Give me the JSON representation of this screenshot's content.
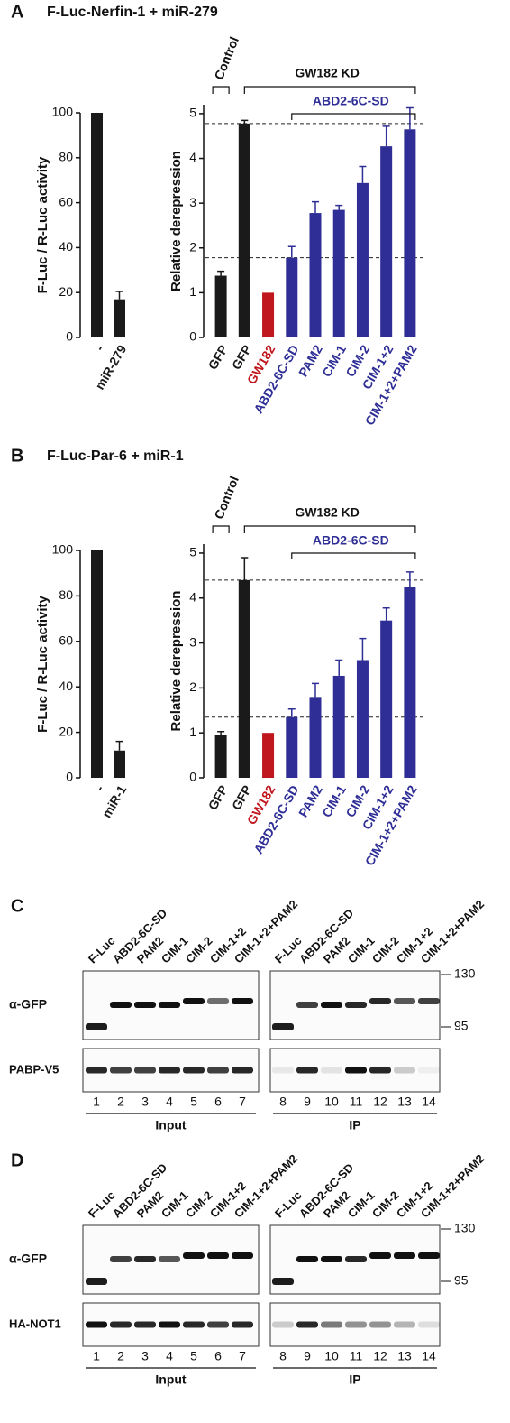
{
  "panels": [
    {
      "label": "A",
      "title": "F-Luc-Nerfin-1 + miR-279"
    },
    {
      "label": "B",
      "title": "F-Luc-Par-6 + miR-1"
    }
  ],
  "chart_data": [
    {
      "type": "bar",
      "ylabel": "F-Luc / R-Luc activity",
      "categories": [
        "-",
        "miR-279"
      ],
      "values": [
        100,
        17
      ],
      "errors": [
        null,
        3.5
      ],
      "colors": [
        "#1a1a1a",
        "#1a1a1a"
      ],
      "ylim": [
        0,
        100
      ],
      "yticks": [
        0,
        20,
        40,
        60,
        80,
        100
      ]
    },
    {
      "type": "bar",
      "ylabel": "Relative derepression",
      "categories": [
        "GFP",
        "GFP",
        "GW182",
        "ABD2-6C-SD",
        "PAM2",
        "CIM-1",
        "CIM-2",
        "CIM-1+2",
        "CIM-1+2+PAM2"
      ],
      "values": [
        1.38,
        4.78,
        1.0,
        1.78,
        2.78,
        2.85,
        3.45,
        4.27,
        4.65
      ],
      "errors": [
        0.1,
        0.07,
        null,
        0.25,
        0.25,
        0.1,
        0.37,
        0.45,
        0.48
      ],
      "colors": [
        "#1a1a1a",
        "#1a1a1a",
        "#c0161d",
        "#2e2e96",
        "#2e2e96",
        "#2e2e96",
        "#2e2e96",
        "#2e2e96",
        "#2e2e96"
      ],
      "ylim": [
        0,
        5.2
      ],
      "yticks": [
        0,
        1,
        2,
        3,
        4,
        5
      ],
      "reference_lines": [
        1.78,
        4.78
      ],
      "brackets": [
        "Control",
        "GW182 KD",
        "ABD2-6C-SD"
      ]
    },
    {
      "type": "bar",
      "ylabel": "F-Luc / R-Luc activity",
      "categories": [
        "-",
        "miR-1"
      ],
      "values": [
        100,
        12
      ],
      "errors": [
        null,
        4
      ],
      "colors": [
        "#1a1a1a",
        "#1a1a1a"
      ],
      "ylim": [
        0,
        100
      ],
      "yticks": [
        0,
        20,
        40,
        60,
        80,
        100
      ]
    },
    {
      "type": "bar",
      "ylabel": "Relative derepression",
      "categories": [
        "GFP",
        "GFP",
        "GW182",
        "ABD2-6C-SD",
        "PAM2",
        "CIM-1",
        "CIM-2",
        "CIM-1+2",
        "CIM-1+2+PAM2"
      ],
      "values": [
        0.95,
        4.4,
        1.0,
        1.35,
        1.8,
        2.27,
        2.62,
        3.5,
        4.25
      ],
      "errors": [
        0.08,
        0.5,
        null,
        0.18,
        0.3,
        0.35,
        0.48,
        0.28,
        0.33
      ],
      "colors": [
        "#1a1a1a",
        "#1a1a1a",
        "#c0161d",
        "#2e2e96",
        "#2e2e96",
        "#2e2e96",
        "#2e2e96",
        "#2e2e96",
        "#2e2e96"
      ],
      "ylim": [
        0,
        5.2
      ],
      "yticks": [
        0,
        1,
        2,
        3,
        4,
        5
      ],
      "reference_lines": [
        1.35,
        4.4
      ],
      "brackets": [
        "Control",
        "GW182 KD",
        "ABD2-6C-SD"
      ]
    }
  ],
  "blots": [
    {
      "label": "C",
      "lanes": [
        "F-Luc",
        "ABD2-6C-SD",
        "PAM2",
        "CIM-1",
        "CIM-2",
        "CIM-1+2",
        "CIM-1+2+PAM2"
      ],
      "rows": [
        "α-GFP",
        "PABP-V5"
      ],
      "lane_numbers": [
        1,
        2,
        3,
        4,
        5,
        6,
        7,
        8,
        9,
        10,
        11,
        12,
        13,
        14
      ],
      "groups": [
        "Input",
        "IP"
      ],
      "markers": [
        130,
        95
      ]
    },
    {
      "label": "D",
      "lanes": [
        "F-Luc",
        "ABD2-6C-SD",
        "PAM2",
        "CIM-1",
        "CIM-2",
        "CIM-1+2",
        "CIM-1+2+PAM2"
      ],
      "rows": [
        "α-GFP",
        "HA-NOT1"
      ],
      "lane_numbers": [
        1,
        2,
        3,
        4,
        5,
        6,
        7,
        8,
        9,
        10,
        11,
        12,
        13,
        14
      ],
      "groups": [
        "Input",
        "IP"
      ],
      "markers": [
        130,
        95
      ]
    }
  ]
}
